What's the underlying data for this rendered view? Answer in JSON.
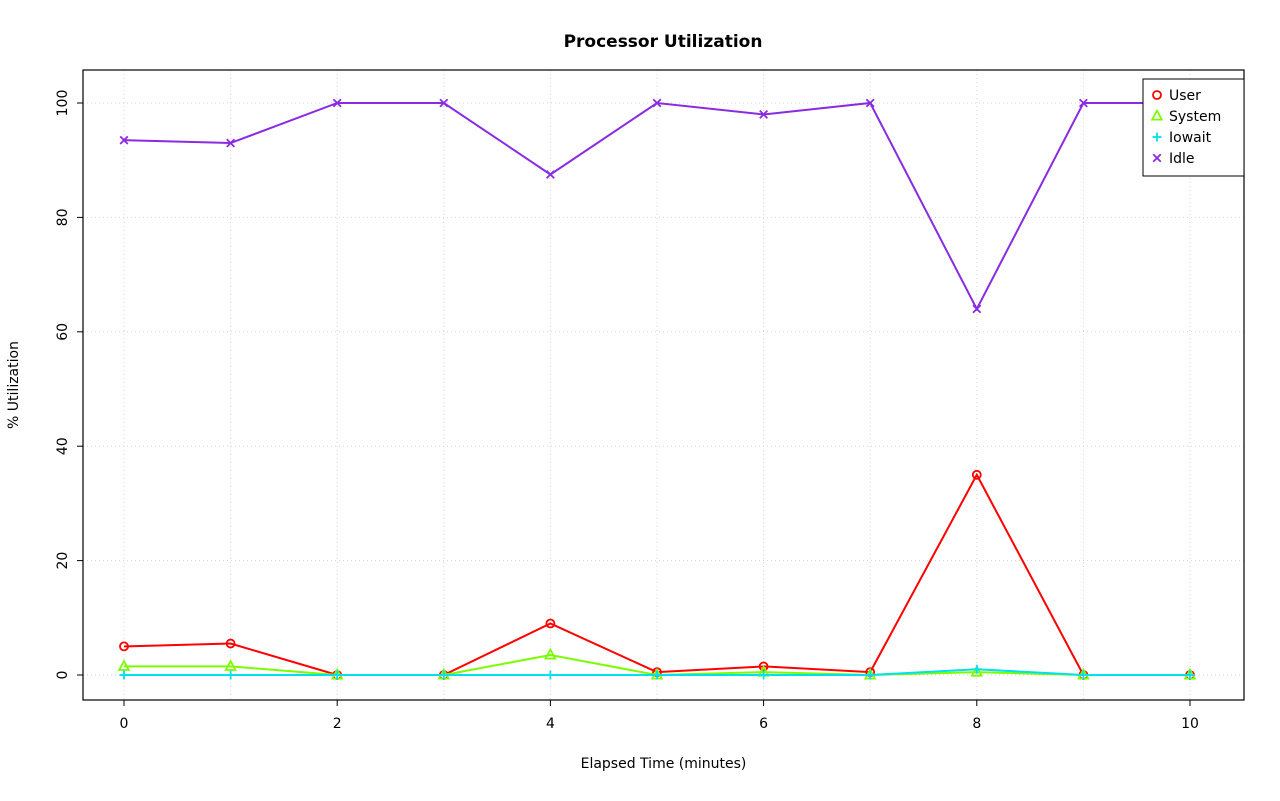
{
  "chart_data": {
    "type": "line",
    "title": "Processor Utilization",
    "xlabel": "Elapsed Time (minutes)",
    "ylabel": "% Utilization",
    "x": [
      0,
      1,
      2,
      3,
      4,
      5,
      6,
      7,
      8,
      9,
      10
    ],
    "xticks": [
      0,
      2,
      4,
      6,
      8,
      10
    ],
    "yticks": [
      0,
      20,
      40,
      60,
      80,
      100
    ],
    "xlim": [
      0,
      10
    ],
    "ylim": [
      0,
      100
    ],
    "grid": true,
    "grid_color": "#d6d6d6",
    "legend_position": "top-right",
    "series": [
      {
        "name": "User",
        "color": "#FF0000",
        "marker": "circle",
        "values": [
          5,
          5.5,
          0,
          0,
          9,
          0.5,
          1.5,
          0.5,
          35,
          0,
          0
        ]
      },
      {
        "name": "System",
        "color": "#7CFC00",
        "marker": "triangle",
        "values": [
          1.5,
          1.5,
          0,
          0,
          3.5,
          0,
          0.5,
          0,
          0.5,
          0,
          0
        ]
      },
      {
        "name": "Iowait",
        "color": "#00E0EE",
        "marker": "plus",
        "values": [
          0,
          0,
          0,
          0,
          0,
          0,
          0,
          0,
          1,
          0,
          0
        ]
      },
      {
        "name": "Idle",
        "color": "#8A2BE2",
        "marker": "x",
        "values": [
          93.5,
          93,
          100,
          100,
          87.5,
          100,
          98,
          100,
          64,
          100,
          100
        ]
      }
    ]
  }
}
